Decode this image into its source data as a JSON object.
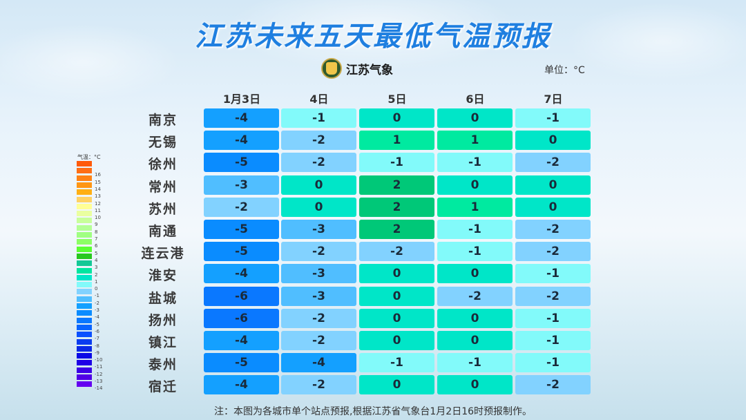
{
  "title": "江苏未来五天最低气温预报",
  "brand": {
    "logo_text": "江苏气象"
  },
  "unit_label": "单位：°C",
  "legend": {
    "title": "气温：°C",
    "items": [
      {
        "label": "",
        "color": "#ff5a0a"
      },
      {
        "label": "16",
        "color": "#ff6e14"
      },
      {
        "label": "15",
        "color": "#ff8214"
      },
      {
        "label": "14",
        "color": "#ff9614"
      },
      {
        "label": "13",
        "color": "#ffaf14"
      },
      {
        "label": "12",
        "color": "#ffd264"
      },
      {
        "label": "11",
        "color": "#ffff96"
      },
      {
        "label": "10",
        "color": "#eaffa0"
      },
      {
        "label": "9",
        "color": "#c8ff9a"
      },
      {
        "label": "8",
        "color": "#b4ff96"
      },
      {
        "label": "7",
        "color": "#a0ff82"
      },
      {
        "label": "6",
        "color": "#8cff64"
      },
      {
        "label": "5",
        "color": "#5aff32"
      },
      {
        "label": "4",
        "color": "#28c81e"
      },
      {
        "label": "3",
        "color": "#14c896"
      },
      {
        "label": "2",
        "color": "#00e6a0"
      },
      {
        "label": "1",
        "color": "#00e6c8"
      },
      {
        "label": "0",
        "color": "#82fafa"
      },
      {
        "label": "-1",
        "color": "#82d2ff"
      },
      {
        "label": "-2",
        "color": "#50beff"
      },
      {
        "label": "-3",
        "color": "#14a0ff"
      },
      {
        "label": "-4",
        "color": "#0a8cff"
      },
      {
        "label": "-5",
        "color": "#0a78ff"
      },
      {
        "label": "-6",
        "color": "#0a64ff"
      },
      {
        "label": "-7",
        "color": "#0a50ff"
      },
      {
        "label": "-8",
        "color": "#0a3cf0"
      },
      {
        "label": "-9",
        "color": "#0a28e6"
      },
      {
        "label": "-10",
        "color": "#0a0ae6"
      },
      {
        "label": "-11",
        "color": "#1e00e6"
      },
      {
        "label": "-12",
        "color": "#3c00e6"
      },
      {
        "label": "-13",
        "color": "#5000e6"
      },
      {
        "label": "-14",
        "color": "#6400f0"
      }
    ]
  },
  "footnote": "注：本图为各城市单个站点预报,根据江苏省气象台1月2日16时预报制作。",
  "chart_data": {
    "type": "table",
    "title": "江苏未来五天最低气温预报",
    "unit": "°C",
    "categories": [
      "1月3日",
      "4日",
      "5日",
      "6日",
      "7日"
    ],
    "rows": [
      "南京",
      "无锡",
      "徐州",
      "常州",
      "苏州",
      "南通",
      "连云港",
      "淮安",
      "盐城",
      "扬州",
      "镇江",
      "泰州",
      "宿迁"
    ],
    "series": [
      {
        "name": "南京",
        "values": [
          -4,
          -1,
          0,
          0,
          -1
        ]
      },
      {
        "name": "无锡",
        "values": [
          -4,
          -2,
          1,
          1,
          0
        ]
      },
      {
        "name": "徐州",
        "values": [
          -5,
          -2,
          -1,
          -1,
          -2
        ]
      },
      {
        "name": "常州",
        "values": [
          -3,
          0,
          2,
          0,
          0
        ]
      },
      {
        "name": "苏州",
        "values": [
          -2,
          0,
          2,
          1,
          0
        ]
      },
      {
        "name": "南通",
        "values": [
          -5,
          -3,
          2,
          -1,
          -2
        ]
      },
      {
        "name": "连云港",
        "values": [
          -5,
          -2,
          -2,
          -1,
          -2
        ]
      },
      {
        "name": "淮安",
        "values": [
          -4,
          -3,
          0,
          0,
          -1
        ]
      },
      {
        "name": "盐城",
        "values": [
          -6,
          -3,
          0,
          -2,
          -2
        ]
      },
      {
        "name": "扬州",
        "values": [
          -6,
          -2,
          0,
          0,
          -1
        ]
      },
      {
        "name": "镇江",
        "values": [
          -4,
          -2,
          0,
          0,
          -1
        ]
      },
      {
        "name": "泰州",
        "values": [
          -5,
          -4,
          -1,
          -1,
          -1
        ]
      },
      {
        "name": "宿迁",
        "values": [
          -4,
          -2,
          0,
          0,
          -2
        ]
      }
    ],
    "cell_colors": {
      "-6": "#0a78ff",
      "-5": "#0a8cff",
      "-4": "#14a0ff",
      "-3": "#50beff",
      "-2": "#82d2ff",
      "-1": "#82fafa",
      "0": "#00e6c8",
      "1": "#00eaa0",
      "2": "#00c878"
    }
  }
}
